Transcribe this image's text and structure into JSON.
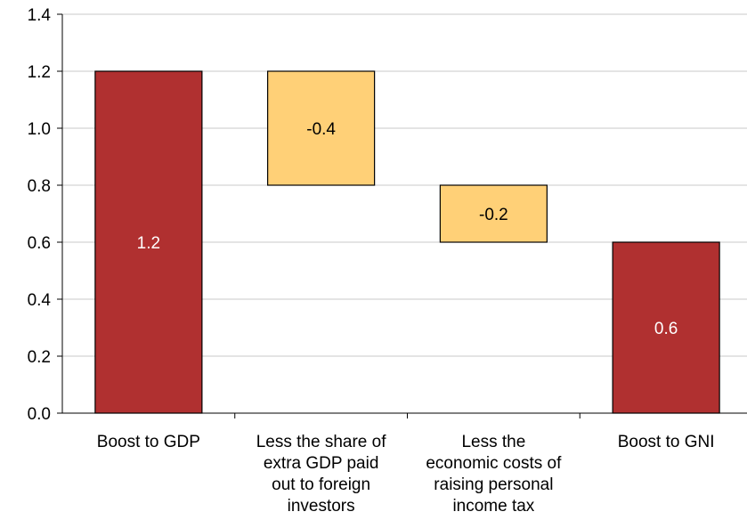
{
  "chart_data": {
    "type": "waterfall",
    "categories": [
      [
        "Boost to GDP"
      ],
      [
        "Less the share of",
        "extra GDP paid",
        "out to foreign",
        "investors"
      ],
      [
        "Less the",
        "economic costs of",
        "raising personal",
        "income tax"
      ],
      [
        "Boost to GNI"
      ]
    ],
    "bars": [
      {
        "kind": "total",
        "start": 0,
        "end": 1.2,
        "label": "1.2"
      },
      {
        "kind": "decrease",
        "start": 1.2,
        "end": 0.8,
        "label": "-0.4"
      },
      {
        "kind": "decrease",
        "start": 0.8,
        "end": 0.6,
        "label": "-0.2"
      },
      {
        "kind": "total",
        "start": 0,
        "end": 0.6,
        "label": "0.6"
      }
    ],
    "y_ticks": [
      "0.0",
      "0.2",
      "0.4",
      "0.6",
      "0.8",
      "1.0",
      "1.2",
      "1.4"
    ],
    "ylim": [
      0,
      1.4
    ],
    "grid": true,
    "legend": "none",
    "colors": {
      "total": "#b03030",
      "decrease": "#ffd077",
      "total_label": "#ffffff",
      "decrease_label": "#000000",
      "grid": "#c8c8c8"
    }
  }
}
